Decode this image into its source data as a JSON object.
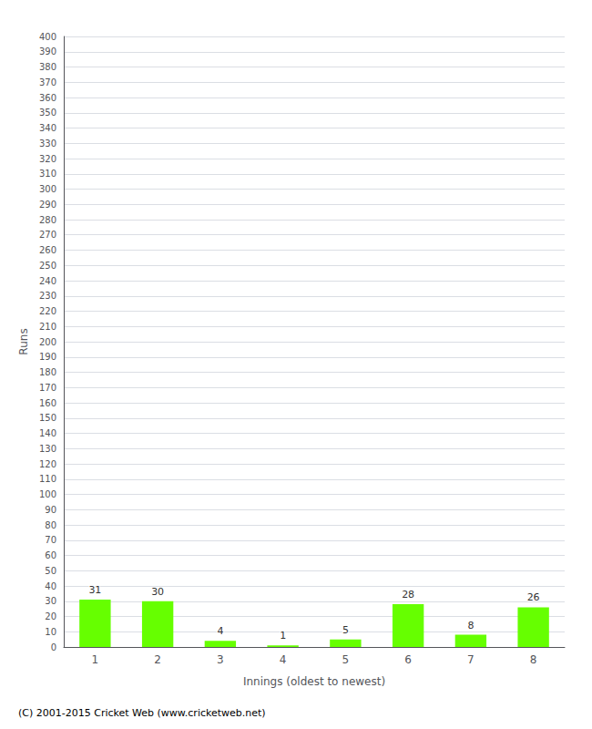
{
  "chart_data": {
    "type": "bar",
    "categories": [
      "1",
      "2",
      "3",
      "4",
      "5",
      "6",
      "7",
      "8"
    ],
    "values": [
      31,
      30,
      4,
      1,
      5,
      28,
      8,
      26
    ],
    "color": "#66ff00",
    "xlabel": "Innings (oldest to newest)",
    "ylabel": "Runs",
    "ylim": [
      0,
      400
    ],
    "yticks": [
      0,
      10,
      20,
      30,
      40,
      50,
      60,
      70,
      80,
      90,
      100,
      110,
      120,
      130,
      140,
      150,
      160,
      170,
      180,
      190,
      200,
      210,
      220,
      230,
      240,
      250,
      260,
      270,
      280,
      290,
      300,
      310,
      320,
      330,
      340,
      350,
      360,
      370,
      380,
      390,
      400
    ],
    "grid": true,
    "data_labels": true,
    "footer": "(C) 2001-2015 Cricket Web (www.cricketweb.net)"
  }
}
